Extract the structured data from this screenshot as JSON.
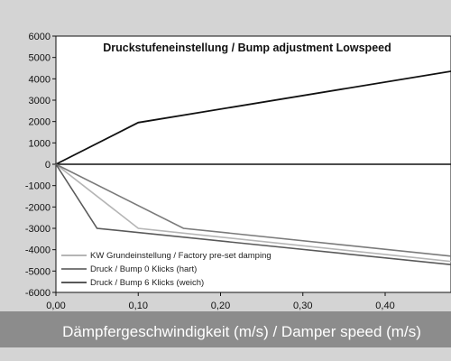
{
  "chart_data": {
    "type": "line",
    "title": "Druckstufeneinstellung / Bump adjustment Lowspeed",
    "xlabel": "Dämpfergeschwindigkeit (m/s) / Damper speed (m/s)",
    "ylabel": "",
    "xlim": [
      0,
      0.48
    ],
    "ylim": [
      -6000,
      6000
    ],
    "x_ticks": [
      "0,00",
      "0,10",
      "0,20",
      "0,30",
      "0,40"
    ],
    "y_ticks": [
      "6000",
      "5000",
      "4000",
      "3000",
      "2000",
      "1000",
      "0",
      "-1000",
      "-2000",
      "-3000",
      "-4000",
      "-5000",
      "-6000"
    ],
    "grid": false,
    "legend_position": "bottom-left",
    "series": [
      {
        "name": "",
        "color": "#111111",
        "points": [
          [
            0,
            0
          ],
          [
            0.1,
            1950
          ],
          [
            0.48,
            4350
          ]
        ]
      },
      {
        "name": "KW Grundeinstellung / Factory pre-set damping",
        "color": "#b5b5b5",
        "points": [
          [
            0,
            0
          ],
          [
            0.1,
            -3000
          ],
          [
            0.48,
            -4550
          ]
        ]
      },
      {
        "name": "Druck / Bump 0 Klicks (hart)",
        "color": "#7a7a7a",
        "points": [
          [
            0,
            0
          ],
          [
            0.155,
            -3000
          ],
          [
            0.48,
            -4300
          ]
        ]
      },
      {
        "name": "Druck / Bump 6 Klicks (weich)",
        "color": "#595959",
        "points": [
          [
            0,
            0
          ],
          [
            0.05,
            -3000
          ],
          [
            0.48,
            -4700
          ]
        ]
      }
    ]
  }
}
